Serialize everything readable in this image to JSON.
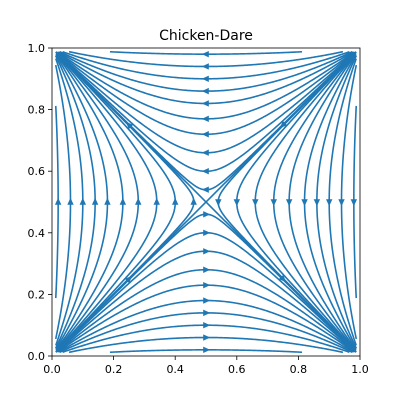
{
  "chart_data": {
    "type": "streamplot",
    "title": "Chicken-Dare",
    "xlabel": "",
    "ylabel": "",
    "xlim": [
      0,
      1
    ],
    "ylim": [
      0,
      1
    ],
    "x_ticks": [
      "0.0",
      "0.2",
      "0.4",
      "0.6",
      "0.8",
      "1.0"
    ],
    "y_ticks": [
      "0.0",
      "0.2",
      "0.4",
      "0.6",
      "0.8",
      "1.0"
    ],
    "grid": false,
    "legend": "none",
    "color": "#1f77b4",
    "field": "x' = x(1-x)(1-2y), y' = y(1-y)(1-2x)",
    "saddle": [
      0.5,
      0.5
    ],
    "streamline_seeds": [
      [
        0.02,
        0.5
      ],
      [
        0.06,
        0.5
      ],
      [
        0.1,
        0.5
      ],
      [
        0.14,
        0.5
      ],
      [
        0.18,
        0.5
      ],
      [
        0.23,
        0.5
      ],
      [
        0.28,
        0.5
      ],
      [
        0.34,
        0.5
      ],
      [
        0.4,
        0.5
      ],
      [
        0.46,
        0.5
      ],
      [
        0.98,
        0.5
      ],
      [
        0.94,
        0.5
      ],
      [
        0.9,
        0.5
      ],
      [
        0.86,
        0.5
      ],
      [
        0.82,
        0.5
      ],
      [
        0.77,
        0.5
      ],
      [
        0.72,
        0.5
      ],
      [
        0.66,
        0.5
      ],
      [
        0.6,
        0.5
      ],
      [
        0.54,
        0.5
      ],
      [
        0.5,
        0.02
      ],
      [
        0.5,
        0.06
      ],
      [
        0.5,
        0.1
      ],
      [
        0.5,
        0.14
      ],
      [
        0.5,
        0.18
      ],
      [
        0.5,
        0.23
      ],
      [
        0.5,
        0.28
      ],
      [
        0.5,
        0.34
      ],
      [
        0.5,
        0.4
      ],
      [
        0.5,
        0.46
      ],
      [
        0.5,
        0.98
      ],
      [
        0.5,
        0.94
      ],
      [
        0.5,
        0.9
      ],
      [
        0.5,
        0.86
      ],
      [
        0.5,
        0.82
      ],
      [
        0.5,
        0.77
      ],
      [
        0.5,
        0.72
      ],
      [
        0.5,
        0.66
      ],
      [
        0.5,
        0.6
      ],
      [
        0.5,
        0.54
      ],
      [
        0.25,
        0.75
      ],
      [
        0.75,
        0.25
      ],
      [
        0.75,
        0.75
      ],
      [
        0.25,
        0.25
      ]
    ]
  }
}
